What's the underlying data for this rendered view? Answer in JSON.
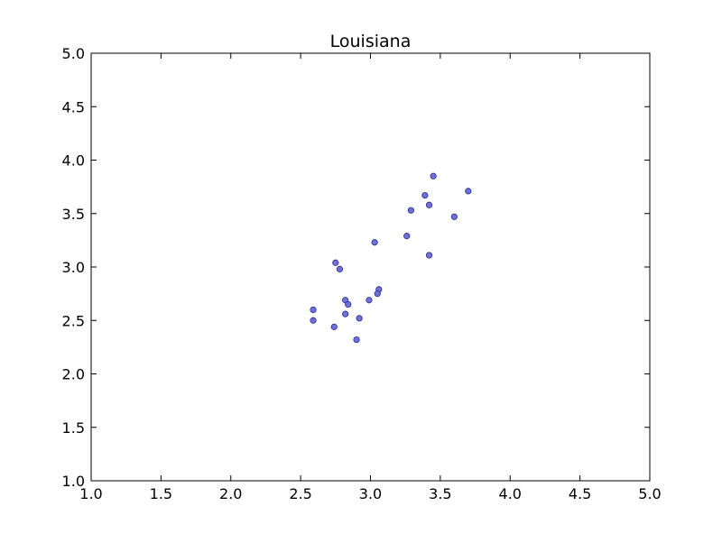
{
  "chart_data": {
    "type": "scatter",
    "title": "Louisiana",
    "xlabel": "",
    "ylabel": "",
    "xlim": [
      1.0,
      5.0
    ],
    "ylim": [
      1.0,
      5.0
    ],
    "xticks": [
      "1.0",
      "1.5",
      "2.0",
      "2.5",
      "3.0",
      "3.5",
      "4.0",
      "4.5",
      "5.0"
    ],
    "yticks": [
      "1.0",
      "1.5",
      "2.0",
      "2.5",
      "3.0",
      "3.5",
      "4.0",
      "4.5",
      "5.0"
    ],
    "grid": false,
    "marker_color": "#7070dd",
    "marker_edge": "#2a2a8a",
    "series": [
      {
        "points": [
          [
            3.45,
            3.85
          ],
          [
            3.39,
            3.67
          ],
          [
            3.7,
            3.71
          ],
          [
            3.42,
            3.58
          ],
          [
            3.29,
            3.53
          ],
          [
            3.6,
            3.47
          ],
          [
            3.26,
            3.29
          ],
          [
            3.03,
            3.23
          ],
          [
            3.42,
            3.11
          ],
          [
            2.75,
            3.04
          ],
          [
            2.78,
            2.98
          ],
          [
            3.06,
            2.79
          ],
          [
            3.05,
            2.75
          ],
          [
            2.99,
            2.69
          ],
          [
            2.82,
            2.69
          ],
          [
            2.84,
            2.65
          ],
          [
            2.59,
            2.6
          ],
          [
            2.82,
            2.56
          ],
          [
            2.92,
            2.52
          ],
          [
            2.59,
            2.5
          ],
          [
            2.74,
            2.44
          ],
          [
            2.9,
            2.32
          ]
        ]
      }
    ]
  }
}
